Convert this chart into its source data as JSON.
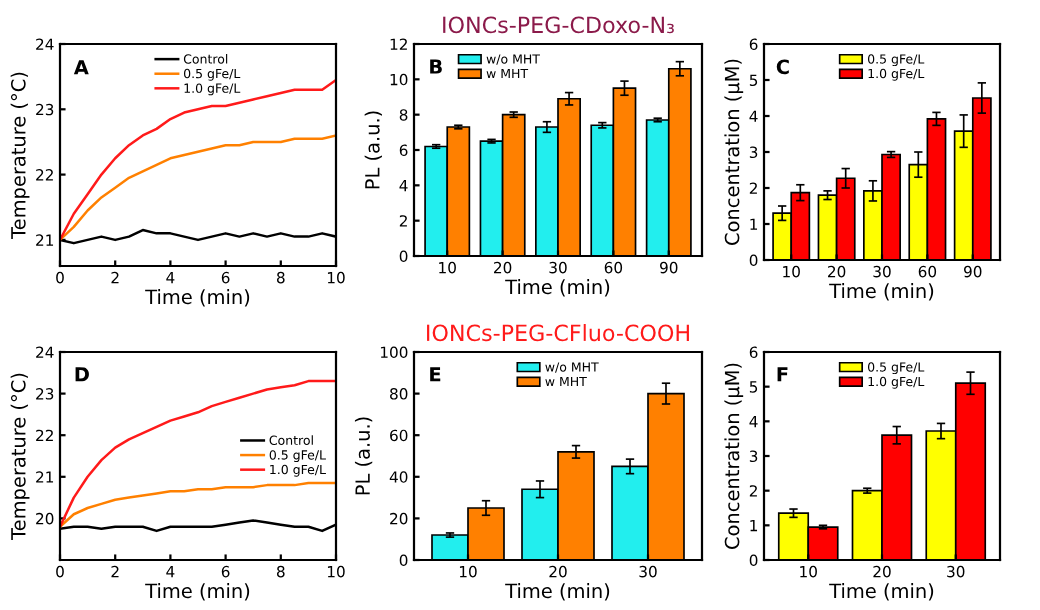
{
  "chart_data": [
    {
      "type": "line",
      "annotations": [
        "A"
      ],
      "xlabel": "Time (min)",
      "ylabel": "Temperature (°C)",
      "xlim": [
        0,
        10
      ],
      "xticks": [
        0,
        2,
        4,
        6,
        8,
        10
      ],
      "ylim": [
        20.6,
        24
      ],
      "yticks": [
        21,
        22,
        23,
        24
      ],
      "legend": "top",
      "grid": false,
      "x": [
        0,
        0.5,
        1,
        1.5,
        2,
        2.5,
        3,
        3.5,
        4,
        4.5,
        5,
        5.5,
        6,
        6.5,
        7,
        7.5,
        8,
        8.5,
        9,
        9.5,
        10
      ],
      "series": [
        {
          "name": "Control",
          "color": "#000000",
          "values": [
            21.0,
            20.95,
            21.0,
            21.05,
            21.0,
            21.05,
            21.15,
            21.1,
            21.1,
            21.05,
            21.0,
            21.05,
            21.1,
            21.05,
            21.1,
            21.05,
            21.1,
            21.05,
            21.05,
            21.1,
            21.05
          ]
        },
        {
          "name": "0.5 gFe/L",
          "color": "#ff8000",
          "values": [
            21.0,
            21.2,
            21.45,
            21.65,
            21.8,
            21.95,
            22.05,
            22.15,
            22.25,
            22.3,
            22.35,
            22.4,
            22.45,
            22.45,
            22.5,
            22.5,
            22.5,
            22.55,
            22.55,
            22.55,
            22.6
          ]
        },
        {
          "name": "1.0 gFe/L",
          "color": "#ff1a1a",
          "values": [
            21.0,
            21.4,
            21.7,
            22.0,
            22.25,
            22.45,
            22.6,
            22.7,
            22.85,
            22.95,
            23.0,
            23.05,
            23.05,
            23.1,
            23.15,
            23.2,
            23.25,
            23.3,
            23.3,
            23.3,
            23.45
          ]
        }
      ]
    },
    {
      "type": "bar",
      "title": "IONCs-PEG-CDoxo-N₃",
      "annotations": [
        "B"
      ],
      "xlabel": "Time (min)",
      "ylabel": "PL (a.u.)",
      "categories": [
        "10",
        "20",
        "30",
        "60",
        "90"
      ],
      "ylim": [
        0,
        12
      ],
      "yticks": [
        0,
        2,
        4,
        6,
        8,
        10,
        12
      ],
      "legend": "top left",
      "grid": false,
      "series": [
        {
          "name": "w/o MHT",
          "color": "#22eeee",
          "values": [
            6.2,
            6.5,
            7.3,
            7.4,
            7.7
          ],
          "errors": [
            0.1,
            0.1,
            0.3,
            0.15,
            0.1
          ]
        },
        {
          "name": "w MHT",
          "color": "#ff8000",
          "values": [
            7.3,
            8.0,
            8.9,
            9.5,
            10.6
          ],
          "errors": [
            0.1,
            0.15,
            0.35,
            0.4,
            0.4
          ]
        }
      ]
    },
    {
      "type": "bar",
      "annotations": [
        "C"
      ],
      "xlabel": "Time (min)",
      "ylabel": "Concentration (μM)",
      "categories": [
        "10",
        "20",
        "30",
        "60",
        "90"
      ],
      "ylim": [
        0,
        6
      ],
      "yticks": [
        0,
        1,
        2,
        3,
        4,
        5,
        6
      ],
      "legend": "top",
      "grid": false,
      "series": [
        {
          "name": "0.5 gFe/L",
          "color": "#ffff00",
          "values": [
            1.3,
            1.8,
            1.92,
            2.65,
            3.58
          ],
          "errors": [
            0.2,
            0.12,
            0.28,
            0.35,
            0.45
          ]
        },
        {
          "name": "1.0 gFe/L",
          "color": "#ff0000",
          "values": [
            1.87,
            2.27,
            2.93,
            3.92,
            4.5
          ],
          "errors": [
            0.22,
            0.27,
            0.08,
            0.18,
            0.42
          ]
        }
      ]
    },
    {
      "type": "line",
      "annotations": [
        "D"
      ],
      "xlabel": "Time (min)",
      "ylabel": "Temperature (°C)",
      "xlim": [
        0,
        10
      ],
      "xticks": [
        0,
        2,
        4,
        6,
        8,
        10
      ],
      "ylim": [
        19,
        24
      ],
      "yticks": [
        20,
        21,
        22,
        23,
        24
      ],
      "legend": "right",
      "grid": false,
      "x": [
        0,
        0.5,
        1,
        1.5,
        2,
        2.5,
        3,
        3.5,
        4,
        4.5,
        5,
        5.5,
        6,
        6.5,
        7,
        7.5,
        8,
        8.5,
        9,
        9.5,
        10
      ],
      "series": [
        {
          "name": "Control",
          "color": "#000000",
          "values": [
            19.75,
            19.8,
            19.8,
            19.75,
            19.8,
            19.8,
            19.8,
            19.7,
            19.8,
            19.8,
            19.8,
            19.8,
            19.85,
            19.9,
            19.95,
            19.9,
            19.85,
            19.8,
            19.8,
            19.7,
            19.85
          ]
        },
        {
          "name": "0.5 gFe/L",
          "color": "#ff8000",
          "values": [
            19.8,
            20.1,
            20.25,
            20.35,
            20.45,
            20.5,
            20.55,
            20.6,
            20.65,
            20.65,
            20.7,
            20.7,
            20.75,
            20.75,
            20.75,
            20.8,
            20.8,
            20.8,
            20.85,
            20.85,
            20.85
          ]
        },
        {
          "name": "1.0 gFe/L",
          "color": "#ff1a1a",
          "values": [
            19.8,
            20.5,
            21.0,
            21.4,
            21.7,
            21.9,
            22.05,
            22.2,
            22.35,
            22.45,
            22.55,
            22.7,
            22.8,
            22.9,
            23.0,
            23.1,
            23.15,
            23.2,
            23.3,
            23.3,
            23.3
          ]
        }
      ]
    },
    {
      "type": "bar",
      "title": "IONCs-PEG-CFluo-COOH",
      "annotations": [
        "E"
      ],
      "xlabel": "Time (min)",
      "ylabel": "PL (a.u.)",
      "categories": [
        "10",
        "20",
        "30"
      ],
      "ylim": [
        0,
        100
      ],
      "yticks": [
        0,
        20,
        40,
        60,
        80,
        100
      ],
      "legend": "top",
      "grid": false,
      "series": [
        {
          "name": "w/o MHT",
          "color": "#22eeee",
          "values": [
            12,
            34,
            45
          ],
          "errors": [
            1,
            4,
            3.5
          ]
        },
        {
          "name": "w MHT",
          "color": "#ff8000",
          "values": [
            25,
            52,
            80
          ],
          "errors": [
            3.5,
            3,
            5
          ]
        }
      ]
    },
    {
      "type": "bar",
      "annotations": [
        "F"
      ],
      "xlabel": "Time (min)",
      "ylabel": "Concentration (μM)",
      "categories": [
        "10",
        "20",
        "30"
      ],
      "ylim": [
        0,
        6
      ],
      "yticks": [
        0,
        1,
        2,
        3,
        4,
        5,
        6
      ],
      "legend": "top",
      "grid": false,
      "series": [
        {
          "name": "0.5 gFe/L",
          "color": "#ffff00",
          "values": [
            1.35,
            2.0,
            3.72
          ],
          "errors": [
            0.12,
            0.07,
            0.22
          ]
        },
        {
          "name": "1.0 gFe/L",
          "color": "#ff0000",
          "values": [
            0.95,
            3.6,
            5.1
          ],
          "errors": [
            0.05,
            0.25,
            0.32
          ]
        }
      ]
    }
  ]
}
